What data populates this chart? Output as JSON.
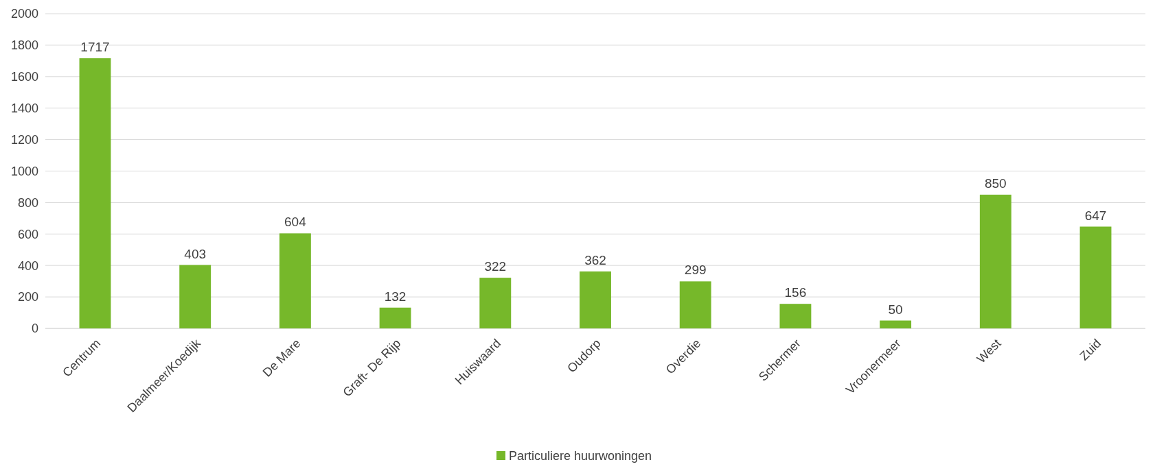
{
  "chart_data": {
    "type": "bar",
    "categories": [
      "Centrum",
      "Daalmeer/Koedijk",
      "De Mare",
      "Graft- De Rijp",
      "Huiswaard",
      "Oudorp",
      "Overdie",
      "Schermer",
      "Vroonermeer",
      "West",
      "Zuid"
    ],
    "series": [
      {
        "name": "Particuliere huurwoningen",
        "color": "#76b82a",
        "values": [
          1717,
          403,
          604,
          132,
          322,
          362,
          299,
          156,
          50,
          850,
          647
        ]
      }
    ],
    "ylim": [
      0,
      2000
    ],
    "yticks": [
      0,
      200,
      400,
      600,
      800,
      1000,
      1200,
      1400,
      1600,
      1800,
      2000
    ],
    "grid": "y",
    "data_labels": true,
    "legend": "bottom"
  }
}
